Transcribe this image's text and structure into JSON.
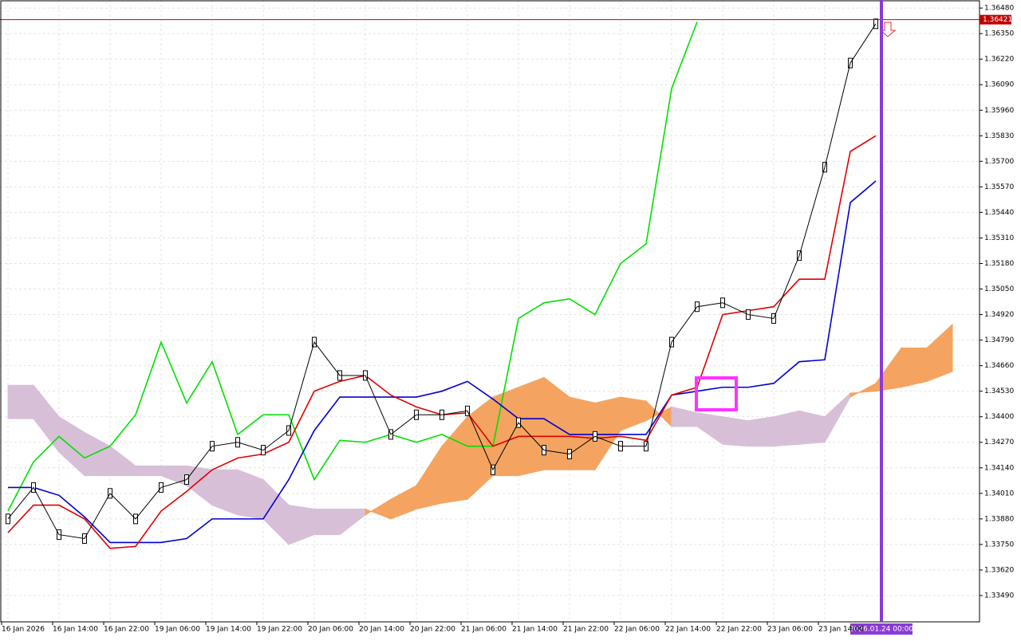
{
  "chart_data": {
    "type": "ichimoku",
    "categories": [
      "16 Jan 2026",
      null,
      "16 Jan 14:00",
      null,
      "16 Jan 22:00",
      null,
      "19 Jan 06:00",
      null,
      "19 Jan 14:00",
      null,
      "19 Jan 22:00",
      null,
      "20 Jan 06:00",
      null,
      "20 Jan 14:00",
      null,
      "20 Jan 22:00",
      null,
      "21 Jan 06:00",
      null,
      "21 Jan 14:00",
      null,
      "21 Jan 22:00",
      null,
      "22 Jan 06:00",
      null,
      "22 Jan 14:00",
      null,
      "22 Jan 22:00",
      null,
      "23 Jan 06:00",
      null,
      "23 Jan 14:00",
      null,
      null,
      null,
      null,
      null
    ],
    "close": {
      "color": "#000000",
      "values": [
        1.3388,
        1.3404,
        1.338,
        1.3378,
        1.3401,
        1.3388,
        1.3404,
        1.3408,
        1.3425,
        1.3427,
        1.3423,
        1.3433,
        1.3478,
        1.3461,
        1.3461,
        1.3431,
        1.3441,
        1.3441,
        1.3443,
        1.3413,
        1.3437,
        1.3423,
        1.3421,
        1.343,
        1.3425,
        1.3425,
        1.3478,
        1.3496,
        1.3498,
        1.3492,
        1.349,
        1.3522,
        1.3567,
        1.362,
        1.364,
        null,
        null,
        null
      ]
    },
    "tenkan": {
      "color": "#e00000",
      "values": [
        1.3381,
        1.3395,
        1.3395,
        1.3388,
        1.3373,
        1.3374,
        1.3392,
        1.3402,
        1.3413,
        1.3419,
        1.3421,
        1.3427,
        1.3453,
        1.3458,
        1.3461,
        1.3451,
        1.3445,
        1.3441,
        1.3442,
        1.3425,
        1.343,
        1.343,
        1.343,
        1.3429,
        1.343,
        1.3428,
        1.3451,
        1.3455,
        1.3492,
        1.3494,
        1.3496,
        1.351,
        1.351,
        1.3575,
        1.3583,
        null,
        null,
        null
      ]
    },
    "kijun": {
      "color": "#0000d0",
      "values": [
        1.3404,
        1.3404,
        1.34,
        1.3389,
        1.3376,
        1.3376,
        1.3376,
        1.3378,
        1.3388,
        1.3388,
        1.3388,
        1.3408,
        1.3433,
        1.345,
        1.345,
        1.345,
        1.345,
        1.3453,
        1.3458,
        1.3449,
        1.3439,
        1.3439,
        1.3431,
        1.3431,
        1.3431,
        1.3431,
        1.3451,
        1.3453,
        1.3455,
        1.3455,
        1.3457,
        1.3468,
        1.3469,
        1.3549,
        1.356,
        null,
        null,
        null
      ]
    },
    "chikou": {
      "color": "#00e000",
      "values": [
        1.3392,
        1.3417,
        1.343,
        1.3419,
        1.3425,
        1.3441,
        1.3478,
        1.3447,
        1.3468,
        1.3431,
        1.3441,
        1.3441,
        1.3408,
        1.3428,
        1.3427,
        1.3431,
        1.3427,
        1.3431,
        1.3425,
        1.3425,
        1.349,
        1.3498,
        1.35,
        1.3492,
        1.3518,
        1.3528,
        1.3607,
        1.3641,
        null,
        null,
        null,
        null,
        null,
        null,
        null,
        null,
        null,
        null
      ]
    },
    "span_a": {
      "color": "#f4a460",
      "values": [
        1.3439,
        1.3439,
        1.3422,
        1.341,
        1.341,
        1.341,
        1.341,
        1.3405,
        1.3395,
        1.339,
        1.3388,
        1.3375,
        1.338,
        1.338,
        1.339,
        1.3398,
        1.3405,
        1.3425,
        1.344,
        1.345,
        1.3455,
        1.346,
        1.345,
        1.3447,
        1.345,
        1.3448,
        1.3435,
        1.3435,
        1.3426,
        1.3425,
        1.3425,
        1.3426,
        1.3427,
        1.345,
        1.3457,
        1.3475,
        1.3475,
        1.3487
      ]
    },
    "span_b": {
      "color": "#d8bfd8",
      "values": [
        1.3456,
        1.3456,
        1.344,
        1.3432,
        1.3425,
        1.3415,
        1.3415,
        1.3415,
        1.3413,
        1.3413,
        1.3408,
        1.3395,
        1.3393,
        1.3393,
        1.3393,
        1.3388,
        1.3393,
        1.3396,
        1.3398,
        1.341,
        1.341,
        1.3413,
        1.3413,
        1.3413,
        1.3433,
        1.3438,
        1.3445,
        1.3442,
        1.344,
        1.3438,
        1.344,
        1.3443,
        1.344,
        1.3452,
        1.3453,
        1.3455,
        1.3458,
        1.3463
      ]
    },
    "ylim": [
      1.33356,
      1.36521
    ],
    "yticks": [
      {
        "value": 1.3349,
        "label": "1.33490"
      },
      {
        "value": 1.3362,
        "label": "1.33620"
      },
      {
        "value": 1.3375,
        "label": "1.33750"
      },
      {
        "value": 1.3388,
        "label": "1.33880"
      },
      {
        "value": 1.3401,
        "label": "1.34010"
      },
      {
        "value": 1.3414,
        "label": "1.34140"
      },
      {
        "value": 1.3427,
        "label": "1.34270"
      },
      {
        "value": 1.344,
        "label": "1.34400"
      },
      {
        "value": 1.3453,
        "label": "1.34530"
      },
      {
        "value": 1.3466,
        "label": "1.34660"
      },
      {
        "value": 1.3479,
        "label": "1.34790"
      },
      {
        "value": 1.3492,
        "label": "1.34920"
      },
      {
        "value": 1.3505,
        "label": "1.35050"
      },
      {
        "value": 1.3518,
        "label": "1.35180"
      },
      {
        "value": 1.3531,
        "label": "1.35310"
      },
      {
        "value": 1.3544,
        "label": "1.35440"
      },
      {
        "value": 1.3557,
        "label": "1.35570"
      },
      {
        "value": 1.357,
        "label": "1.35700"
      },
      {
        "value": 1.3583,
        "label": "1.35830"
      },
      {
        "value": 1.3596,
        "label": "1.35960"
      },
      {
        "value": 1.3609,
        "label": "1.36090"
      },
      {
        "value": 1.3622,
        "label": "1.36220"
      },
      {
        "value": 1.3635,
        "label": "1.36350"
      },
      {
        "value": 1.3648,
        "label": "1.36480"
      }
    ],
    "price_line": {
      "value": 1.36421,
      "color": "#c00000"
    },
    "cursor_label": "2026.01.24 00:00",
    "grid": true
  }
}
